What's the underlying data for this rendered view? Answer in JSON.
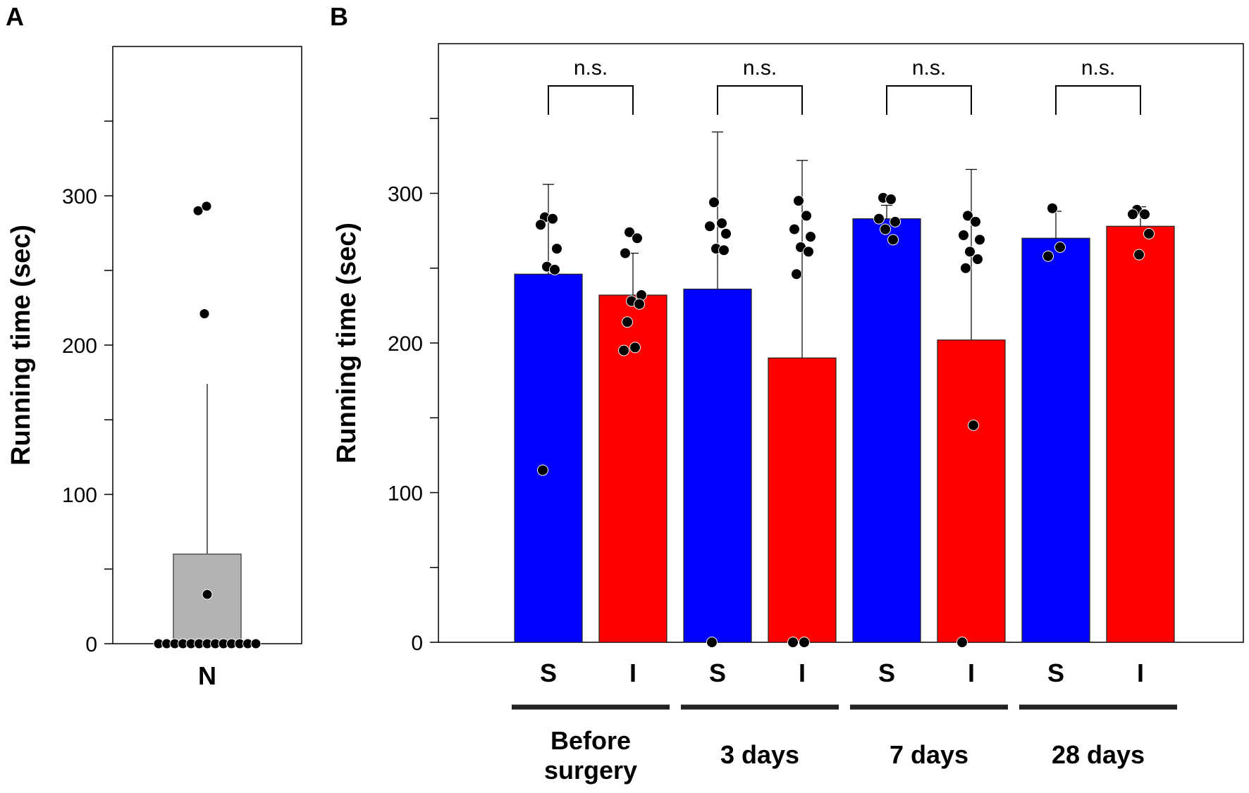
{
  "chart_data": [
    {
      "panel": "A",
      "type": "bar",
      "ylabel": "Running time (sec)",
      "ylim": [
        0,
        400
      ],
      "yticks": [
        0,
        100,
        200,
        300
      ],
      "categories": [
        "N"
      ],
      "values": [
        60
      ],
      "error_upper": [
        174
      ],
      "bar_color": "#b3b3b3",
      "points": [
        [
          0,
          0,
          0,
          0,
          0,
          0,
          0,
          0,
          0,
          0,
          0,
          0,
          0,
          33,
          221,
          290,
          293
        ]
      ]
    },
    {
      "panel": "B",
      "type": "bar",
      "ylabel": "Running time (sec)",
      "ylim": [
        0,
        400
      ],
      "yticks": [
        0,
        100,
        200,
        300
      ],
      "categories": [
        "S",
        "I",
        "S",
        "I",
        "S",
        "I",
        "S",
        "I"
      ],
      "groups": [
        "Before\nsurgery",
        "3 days",
        "7 days",
        "28 days"
      ],
      "group_label_lines": [
        [
          "Before",
          "surgery"
        ],
        [
          "3 days"
        ],
        [
          "7 days"
        ],
        [
          "28 days"
        ]
      ],
      "values": [
        246,
        232,
        236,
        190,
        283,
        202,
        270,
        278
      ],
      "error_upper": [
        306,
        260,
        341,
        322,
        292,
        316,
        288,
        291
      ],
      "colors": [
        "#0000ff",
        "#ff0000",
        "#0000ff",
        "#ff0000",
        "#0000ff",
        "#ff0000",
        "#0000ff",
        "#ff0000"
      ],
      "points": [
        [
          284,
          283,
          279,
          263,
          251,
          249,
          115
        ],
        [
          274,
          270,
          260,
          232,
          228,
          226,
          214,
          197,
          195
        ],
        [
          294,
          280,
          278,
          273,
          263,
          262,
          0
        ],
        [
          295,
          285,
          276,
          271,
          264,
          261,
          246,
          0,
          0
        ],
        [
          297,
          296,
          283,
          281,
          276,
          269
        ],
        [
          285,
          281,
          272,
          269,
          261,
          256,
          250,
          145,
          0
        ],
        [
          290,
          264,
          258
        ],
        [
          289,
          286,
          286,
          273,
          259
        ]
      ],
      "significance": [
        "n.s.",
        "n.s.",
        "n.s.",
        "n.s."
      ]
    }
  ]
}
